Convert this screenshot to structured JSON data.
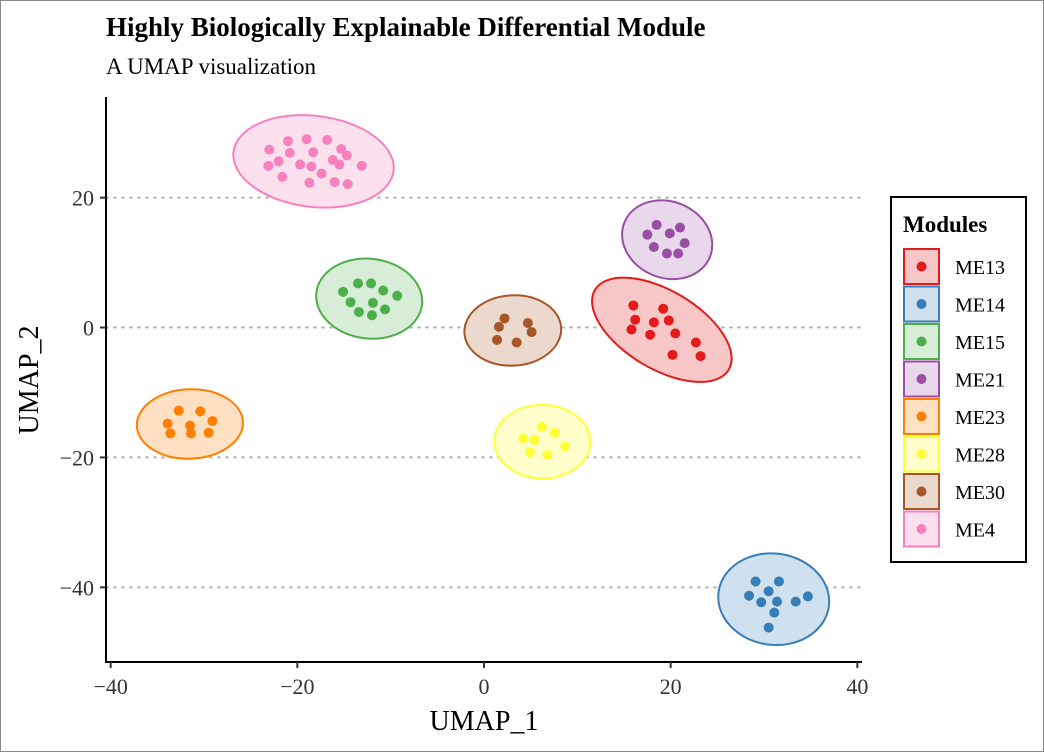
{
  "chart_data": {
    "type": "scatter",
    "title": "Highly Biologically Explainable Differential Module",
    "subtitle": "A UMAP visualization",
    "xlabel": "UMAP_1",
    "ylabel": "UMAP_2",
    "xlim": [
      -40.5,
      40.5
    ],
    "ylim": [
      -51.5,
      35.5
    ],
    "xticks": [
      -40,
      -20,
      0,
      20,
      40
    ],
    "yticks": [
      -40,
      -20,
      0,
      20
    ],
    "xtick_labels": [
      "−40",
      "−20",
      "0",
      "20",
      "40"
    ],
    "ytick_labels": [
      "−40",
      "−20",
      "0",
      "20"
    ],
    "grid": "horizontal dotted at y ticks",
    "legend": {
      "title": "Modules",
      "placement": "right"
    },
    "series": [
      {
        "name": "ME13",
        "color": "#E41A1C",
        "fill": "#F7C6C6",
        "points": [
          [
            16,
            3.4
          ],
          [
            16.2,
            1.2
          ],
          [
            18.2,
            0.8
          ],
          [
            19.2,
            2.9
          ],
          [
            19.8,
            1.1
          ],
          [
            15.8,
            -0.3
          ],
          [
            17.8,
            -1.1
          ],
          [
            20.5,
            -0.9
          ],
          [
            22.7,
            -2.3
          ],
          [
            20.2,
            -4.2
          ],
          [
            23.2,
            -4.4
          ]
        ]
      },
      {
        "name": "ME14",
        "color": "#377EB8",
        "fill": "#CFE0EE",
        "points": [
          [
            29.1,
            -39.1
          ],
          [
            31.6,
            -39.1
          ],
          [
            28.4,
            -41.3
          ],
          [
            30.5,
            -40.6
          ],
          [
            29.7,
            -42.3
          ],
          [
            31.4,
            -42.2
          ],
          [
            33.4,
            -42.2
          ],
          [
            34.7,
            -41.4
          ],
          [
            31.1,
            -43.9
          ],
          [
            30.5,
            -46.2
          ]
        ]
      },
      {
        "name": "ME15",
        "color": "#4DAF4A",
        "fill": "#D8EDD8",
        "points": [
          [
            -13.5,
            6.8
          ],
          [
            -12.1,
            6.8
          ],
          [
            -10.8,
            5.7
          ],
          [
            -15.1,
            5.5
          ],
          [
            -9.3,
            4.9
          ],
          [
            -14.3,
            3.9
          ],
          [
            -11.9,
            3.8
          ],
          [
            -13.4,
            2.4
          ],
          [
            -10.6,
            2.8
          ],
          [
            -12,
            1.9
          ]
        ]
      },
      {
        "name": "ME21",
        "color": "#984EA3",
        "fill": "#E9D8EC",
        "points": [
          [
            18.5,
            15.8
          ],
          [
            17.5,
            14.3
          ],
          [
            21,
            15.4
          ],
          [
            19.9,
            14.5
          ],
          [
            18.2,
            12.4
          ],
          [
            21.5,
            13
          ],
          [
            19.6,
            11.4
          ],
          [
            20.8,
            11.4
          ]
        ]
      },
      {
        "name": "ME23",
        "color": "#FF7F00",
        "fill": "#FFE0C2",
        "points": [
          [
            -32.7,
            -12.8
          ],
          [
            -30.4,
            -12.9
          ],
          [
            -33.9,
            -14.8
          ],
          [
            -29.1,
            -14.4
          ],
          [
            -31.5,
            -15.1
          ],
          [
            -33.6,
            -16.3
          ],
          [
            -31.4,
            -16.3
          ],
          [
            -29.5,
            -16.2
          ]
        ]
      },
      {
        "name": "ME28",
        "color": "#FFFF33",
        "fill": "#FFFFCC",
        "points": [
          [
            6.2,
            -15.3
          ],
          [
            7.6,
            -16.2
          ],
          [
            4.2,
            -17.1
          ],
          [
            5.4,
            -17.3
          ],
          [
            8.7,
            -18.3
          ],
          [
            4.9,
            -19.2
          ],
          [
            6.8,
            -19.6
          ]
        ]
      },
      {
        "name": "ME30",
        "color": "#A65628",
        "fill": "#EBD9CE",
        "points": [
          [
            2.2,
            1.4
          ],
          [
            4.7,
            0.7
          ],
          [
            1.6,
            0.1
          ],
          [
            5.1,
            -0.7
          ],
          [
            1.4,
            -1.9
          ],
          [
            3.5,
            -2.3
          ]
        ]
      },
      {
        "name": "ME4",
        "color": "#F781BF",
        "fill": "#FCE0EE",
        "points": [
          [
            -19,
            29
          ],
          [
            -16.8,
            28.9
          ],
          [
            -21,
            28.7
          ],
          [
            -15.3,
            27.5
          ],
          [
            -23,
            27.4
          ],
          [
            -20.8,
            26.9
          ],
          [
            -18.3,
            27
          ],
          [
            -14.7,
            26.5
          ],
          [
            -22,
            25.6
          ],
          [
            -19.7,
            25.1
          ],
          [
            -16.2,
            25.8
          ],
          [
            -15.5,
            25.1
          ],
          [
            -23.1,
            24.9
          ],
          [
            -18.5,
            24.8
          ],
          [
            -13.1,
            24.9
          ],
          [
            -17.4,
            23.7
          ],
          [
            -21.6,
            23.2
          ],
          [
            -14.6,
            22.1
          ],
          [
            -16,
            22.4
          ],
          [
            -18.7,
            22.3
          ]
        ]
      }
    ]
  }
}
